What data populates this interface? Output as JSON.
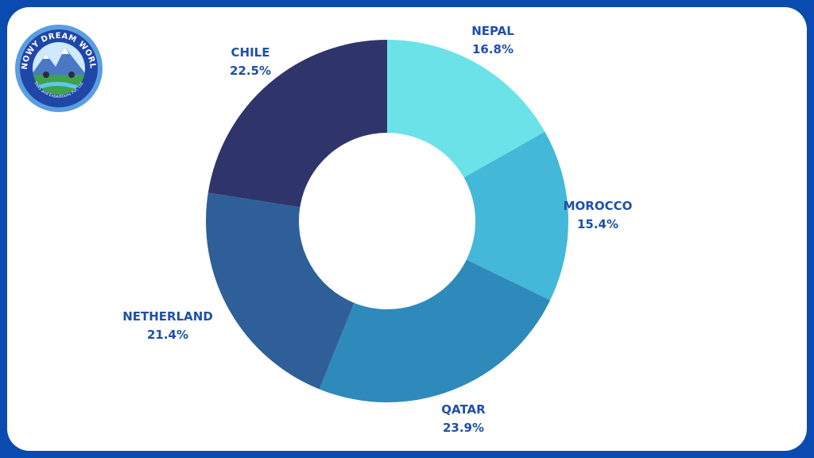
{
  "logo": {
    "name": "SNOWY DREAM WORLD",
    "tagline": "Treks and Expeditions Pvt. Ltd."
  },
  "colors": {
    "frame": "#0a4bb0",
    "label": "#1f4fa8"
  },
  "chart_data": {
    "type": "pie",
    "donut": true,
    "title": "",
    "legend": "none",
    "slices": [
      {
        "label": "NEPAL",
        "value": 16.8,
        "display": "16.8%",
        "color": "#6ae2e8"
      },
      {
        "label": "MOROCCO",
        "value": 15.4,
        "display": "15.4%",
        "color": "#44b8d8"
      },
      {
        "label": "QATAR",
        "value": 23.9,
        "display": "23.9%",
        "color": "#2e8aba"
      },
      {
        "label": "NETHERLAND",
        "value": 21.4,
        "display": "21.4%",
        "color": "#2f5f98"
      },
      {
        "label": "CHILE",
        "value": 22.5,
        "display": "22.5%",
        "color": "#2f356b"
      }
    ]
  }
}
